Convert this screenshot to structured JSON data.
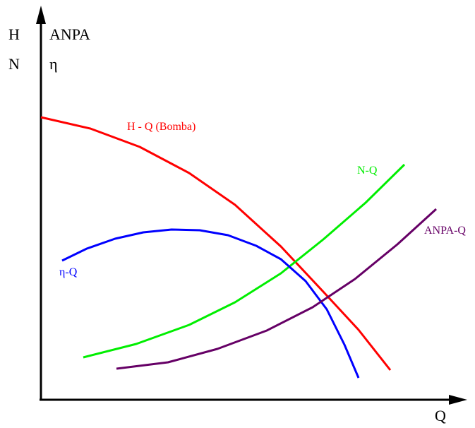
{
  "labels": {
    "y_axis_left": [
      "H",
      "N"
    ],
    "y_axis_right": [
      "ANPA",
      "η"
    ],
    "x_axis": "Q"
  },
  "chart_data": {
    "type": "line",
    "xlabel": "Q",
    "ylabel": "H, N, ANPA, η",
    "title": "",
    "grid": false,
    "series": [
      {
        "name": "H - Q (Bomba)",
        "color": "#ff0000",
        "points": [
          [
            0,
            400
          ],
          [
            70,
            384
          ],
          [
            140,
            358
          ],
          [
            210,
            321
          ],
          [
            275,
            276
          ],
          [
            340,
            217
          ],
          [
            400,
            153
          ],
          [
            450,
            99
          ],
          [
            495,
            42
          ]
        ]
      },
      {
        "name": "N-Q",
        "color": "#00ee00",
        "points": [
          [
            60,
            60
          ],
          [
            135,
            79
          ],
          [
            210,
            106
          ],
          [
            275,
            138
          ],
          [
            340,
            179
          ],
          [
            400,
            227
          ],
          [
            460,
            279
          ],
          [
            515,
            333
          ]
        ]
      },
      {
        "name": "η-Q",
        "color": "#0000ff",
        "points": [
          [
            30,
            197
          ],
          [
            65,
            214
          ],
          [
            105,
            228
          ],
          [
            145,
            237
          ],
          [
            185,
            241
          ],
          [
            225,
            240
          ],
          [
            265,
            233
          ],
          [
            305,
            218
          ],
          [
            340,
            199
          ],
          [
            375,
            168
          ],
          [
            405,
            128
          ],
          [
            430,
            78
          ],
          [
            450,
            31
          ]
        ]
      },
      {
        "name": "ANPA-Q",
        "color": "#660066",
        "points": [
          [
            107,
            44
          ],
          [
            180,
            53
          ],
          [
            250,
            72
          ],
          [
            320,
            98
          ],
          [
            385,
            131
          ],
          [
            445,
            171
          ],
          [
            505,
            220
          ],
          [
            560,
            270
          ]
        ]
      }
    ]
  }
}
